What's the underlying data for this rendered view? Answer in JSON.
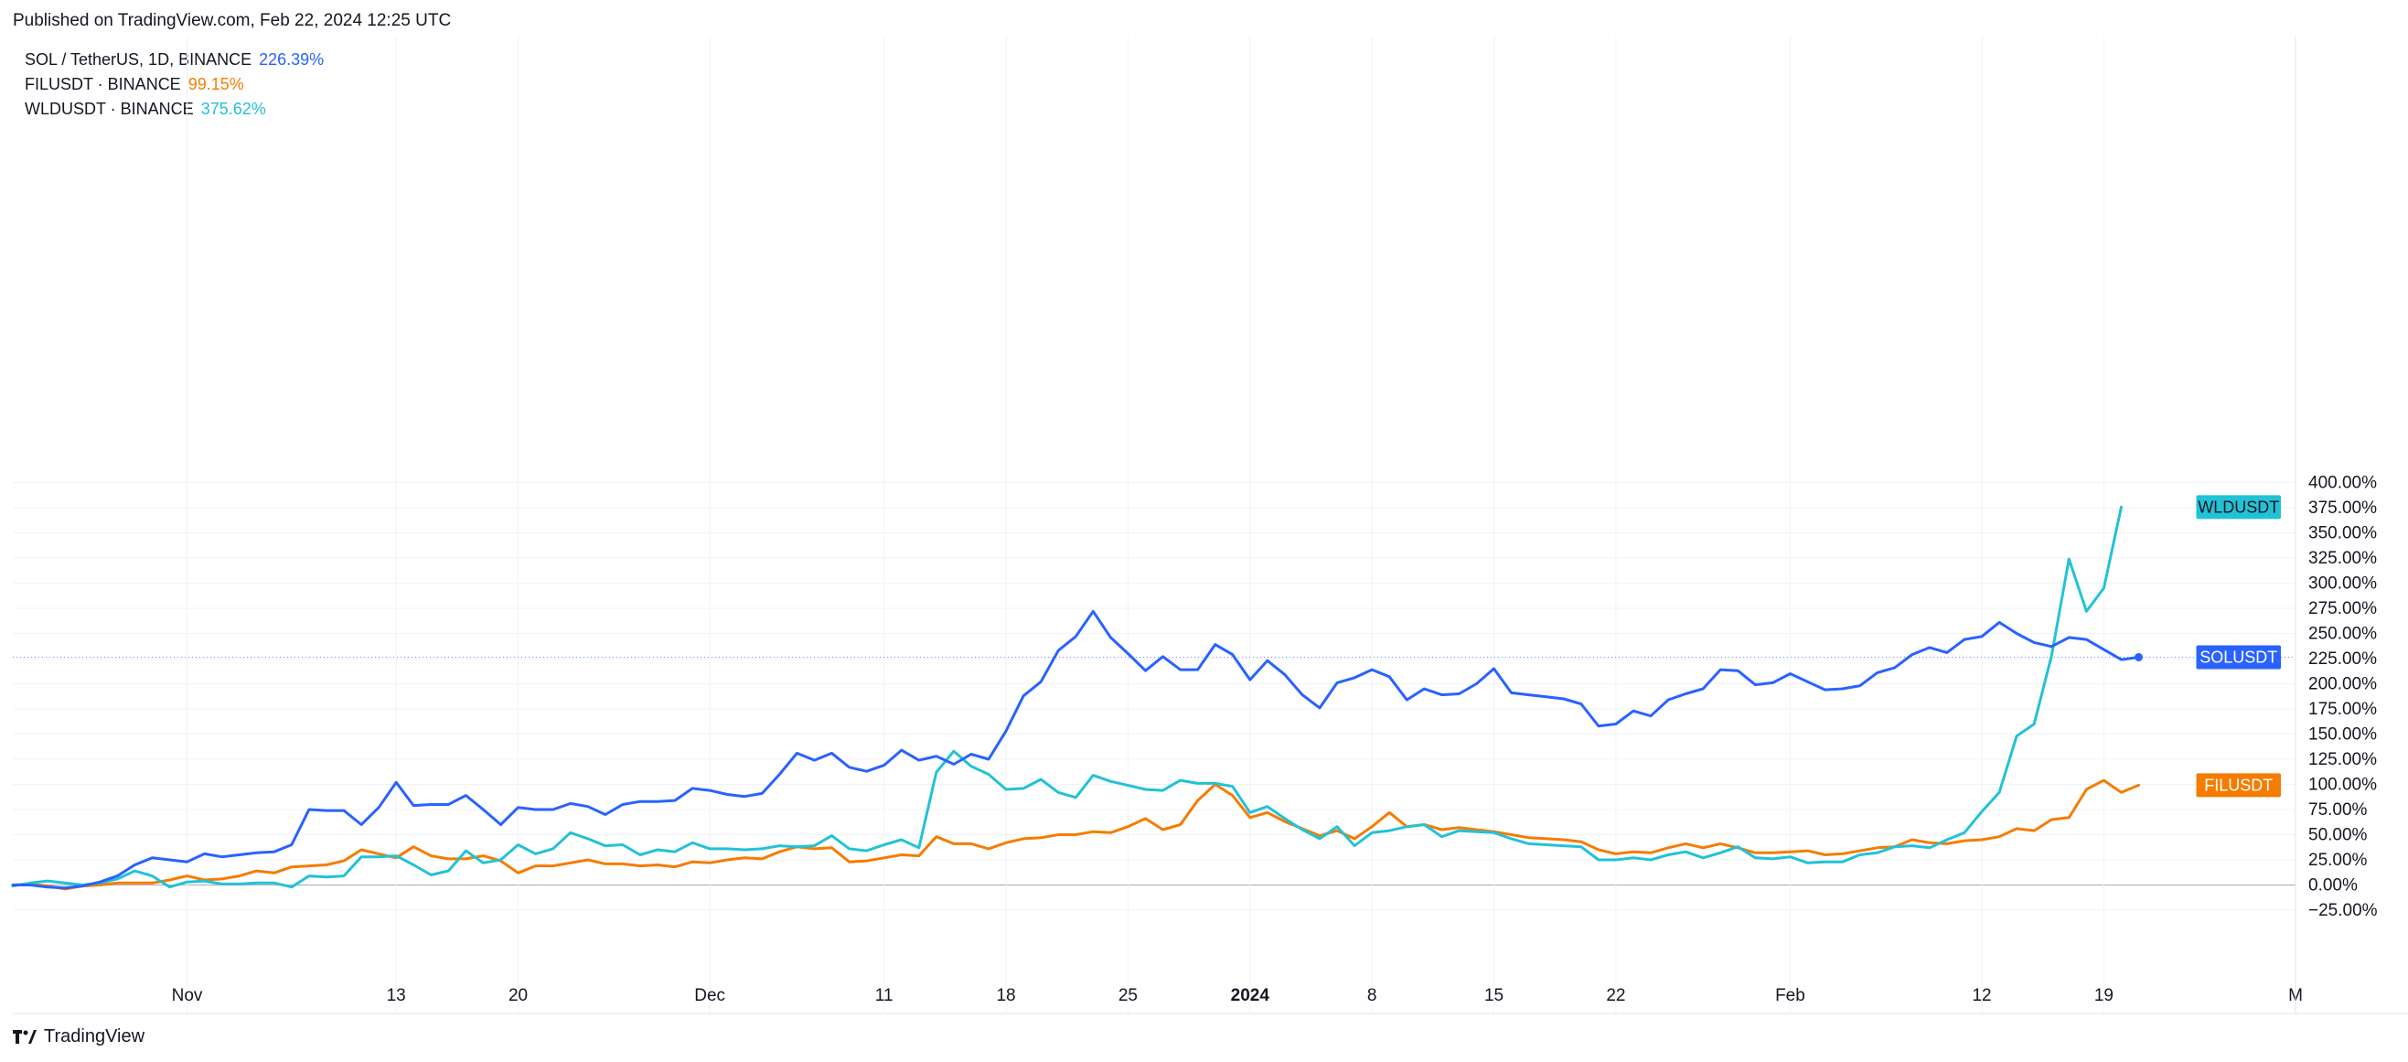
{
  "header": {
    "published": "Published on TradingView.com, Feb 22, 2024 12:25 UTC"
  },
  "legend": [
    {
      "symbol": "SOL / TetherUS, 1D, BINANCE",
      "value": "226.39%",
      "color": "#2962ff"
    },
    {
      "symbol": "FILUSDT · BINANCE",
      "value": "99.15%",
      "color": "#f57c00"
    },
    {
      "symbol": "WLDUSDT · BINANCE",
      "value": "375.62%",
      "color": "#22c2d6"
    }
  ],
  "footer": {
    "brand": "TradingView"
  },
  "chart_data": {
    "type": "line",
    "title": "",
    "xlabel": "",
    "ylabel": "",
    "ylim": [
      -35,
      410
    ],
    "y_ticks": [
      "400.00%",
      "375.00%",
      "350.00%",
      "325.00%",
      "300.00%",
      "275.00%",
      "250.00%",
      "225.00%",
      "200.00%",
      "175.00%",
      "150.00%",
      "125.00%",
      "100.00%",
      "75.00%",
      "50.00%",
      "25.00%",
      "0.00%",
      "−25.00%"
    ],
    "y_tick_values": [
      400,
      375,
      350,
      325,
      300,
      275,
      250,
      225,
      200,
      175,
      150,
      125,
      100,
      75,
      50,
      25,
      0,
      -25
    ],
    "x_start": "2023-10-22",
    "x_end": "2024-03-01",
    "x_ticks": [
      {
        "date": "2023-11-01",
        "label": "Nov",
        "bold": false
      },
      {
        "date": "2023-11-13",
        "label": "13",
        "bold": false
      },
      {
        "date": "2023-11-20",
        "label": "20",
        "bold": false
      },
      {
        "date": "2023-12-01",
        "label": "Dec",
        "bold": false
      },
      {
        "date": "2023-12-11",
        "label": "11",
        "bold": false
      },
      {
        "date": "2023-12-18",
        "label": "18",
        "bold": false
      },
      {
        "date": "2023-12-25",
        "label": "25",
        "bold": false
      },
      {
        "date": "2024-01-01",
        "label": "2024",
        "bold": true
      },
      {
        "date": "2024-01-08",
        "label": "8",
        "bold": false
      },
      {
        "date": "2024-01-15",
        "label": "15",
        "bold": false
      },
      {
        "date": "2024-01-22",
        "label": "22",
        "bold": false
      },
      {
        "date": "2024-02-01",
        "label": "Feb",
        "bold": false
      },
      {
        "date": "2024-02-12",
        "label": "12",
        "bold": false
      },
      {
        "date": "2024-02-19",
        "label": "19",
        "bold": false
      },
      {
        "date": "2024-03-01",
        "label": "M",
        "bold": false
      }
    ],
    "series": [
      {
        "name": "SOLUSDT",
        "color": "#2962ff",
        "last_value": 226.39,
        "values": [
          0,
          0,
          -2,
          -3,
          -1,
          3,
          9,
          20,
          27,
          25,
          23,
          31,
          28,
          30,
          32,
          33,
          40,
          75,
          74,
          74,
          60,
          77,
          102,
          79,
          80,
          80,
          89,
          75,
          60,
          77,
          75,
          75,
          81,
          78,
          70,
          80,
          83,
          83,
          84,
          96,
          94,
          90,
          88,
          91,
          110,
          131,
          124,
          131,
          117,
          113,
          119,
          134,
          124,
          128,
          120,
          130,
          125,
          153,
          188,
          202,
          233,
          247,
          272,
          246,
          230,
          213,
          227,
          214,
          214,
          239,
          229,
          204,
          223,
          209,
          189,
          176,
          201,
          206,
          214,
          207,
          184,
          195,
          189,
          190,
          200,
          215,
          191,
          189,
          187,
          185,
          180,
          158,
          160,
          173,
          168,
          184,
          190,
          195,
          214,
          213,
          199,
          201,
          210,
          202,
          194,
          195,
          198,
          211,
          216,
          229,
          236,
          231,
          244,
          247,
          261,
          250,
          241,
          237,
          246,
          244,
          234,
          224,
          226.39
        ]
      },
      {
        "name": "FILUSDT",
        "color": "#f57c00",
        "last_value": 99.15,
        "values": [
          0,
          1,
          -1,
          -4,
          -1,
          0,
          2,
          2,
          2,
          5,
          9,
          5,
          6,
          9,
          14,
          12,
          18,
          19,
          20,
          24,
          35,
          31,
          27,
          38,
          29,
          26,
          26,
          29,
          24,
          12,
          19,
          19,
          22,
          25,
          21,
          21,
          19,
          20,
          18,
          23,
          22,
          25,
          27,
          26,
          33,
          38,
          36,
          37,
          23,
          24,
          27,
          30,
          29,
          48,
          41,
          41,
          36,
          42,
          46,
          47,
          50,
          50,
          53,
          52,
          58,
          66,
          55,
          60,
          84,
          100,
          89,
          67,
          72,
          63,
          56,
          49,
          54,
          46,
          58,
          72,
          58,
          60,
          55,
          57,
          55,
          53,
          50,
          47,
          46,
          45,
          43,
          35,
          31,
          33,
          32,
          37,
          41,
          37,
          41,
          37,
          32,
          32,
          33,
          34,
          30,
          31,
          34,
          37,
          38,
          45,
          42,
          41,
          44,
          45,
          48,
          56,
          54,
          65,
          67,
          95,
          104,
          92,
          99.15
        ]
      },
      {
        "name": "WLDUSDT",
        "color": "#22c2d6",
        "last_value": 375.62,
        "values": [
          -1,
          2,
          4,
          2,
          0,
          2,
          6,
          14,
          9,
          -2,
          3,
          4,
          1,
          1,
          2,
          2,
          -2,
          9,
          8,
          9,
          28,
          28,
          29,
          20,
          10,
          14,
          34,
          22,
          25,
          40,
          31,
          36,
          52,
          46,
          39,
          40,
          30,
          35,
          33,
          42,
          36,
          36,
          35,
          36,
          39,
          38,
          39,
          49,
          36,
          34,
          40,
          45,
          37,
          112,
          133,
          118,
          110,
          95,
          96,
          105,
          92,
          87,
          109,
          103,
          99,
          95,
          94,
          104,
          101,
          101,
          98,
          72,
          78,
          66,
          55,
          46,
          58,
          39,
          52,
          54,
          58,
          60,
          48,
          54,
          53,
          52,
          46,
          41,
          40,
          39,
          38,
          25,
          25,
          27,
          25,
          30,
          33,
          27,
          32,
          38,
          27,
          26,
          28,
          22,
          23,
          23,
          30,
          32,
          38,
          39,
          37,
          45,
          52,
          73,
          92,
          148,
          160,
          228,
          324,
          272,
          295,
          375.62
        ]
      }
    ],
    "last_price_line_value": 226.39,
    "legend_placement": "top-left",
    "grid": true
  }
}
